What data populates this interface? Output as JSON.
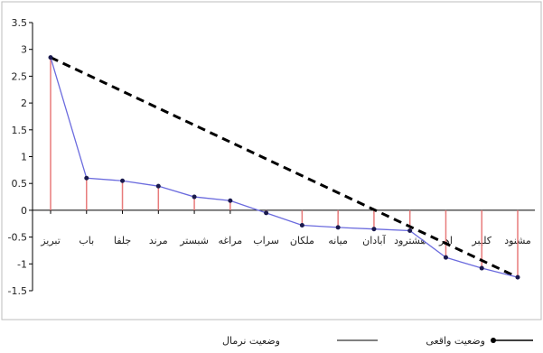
{
  "chart_data": {
    "type": "line",
    "categories": [
      "تبریز",
      "باب",
      "جلفا",
      "مرند",
      "شبستر",
      "مراغه",
      "سراب",
      "ملکان",
      "میانه",
      "آبادان",
      "هشترود",
      "اهر",
      "کلیبر",
      "مشنود"
    ],
    "category_display": [
      "تبریز",
      "باب",
      "جلفا",
      "مرند",
      "شبستر",
      "مراغه",
      "سراب",
      "ملکان",
      "میانه",
      "آبادان",
      "هشترود",
      "اهر",
      "کلیبر",
      "مشنود"
    ],
    "series": [
      {
        "name": "وضعیت واقعی",
        "color": "#6b6bde",
        "marker_color": "#1a1a4d",
        "values": [
          2.85,
          0.6,
          0.55,
          0.45,
          0.25,
          0.18,
          -0.05,
          -0.28,
          -0.32,
          -0.35,
          -0.38,
          -0.88,
          -1.08,
          -1.25
        ]
      },
      {
        "name": "وضعیت نرمال",
        "color": "#000000",
        "style": "dashed",
        "values": [
          2.85,
          null,
          null,
          null,
          null,
          null,
          null,
          null,
          null,
          null,
          null,
          null,
          null,
          -1.25
        ]
      }
    ],
    "drop_lines_color": "#e87b7b",
    "yticks": [
      "3.5",
      "3",
      "2.5",
      "2",
      "1.5",
      "1",
      "0.5",
      "0",
      "-0.5",
      "-1",
      "-1.5"
    ],
    "ylim": [
      -1.5,
      3.5
    ],
    "grid": false,
    "legend_position": "bottom"
  }
}
